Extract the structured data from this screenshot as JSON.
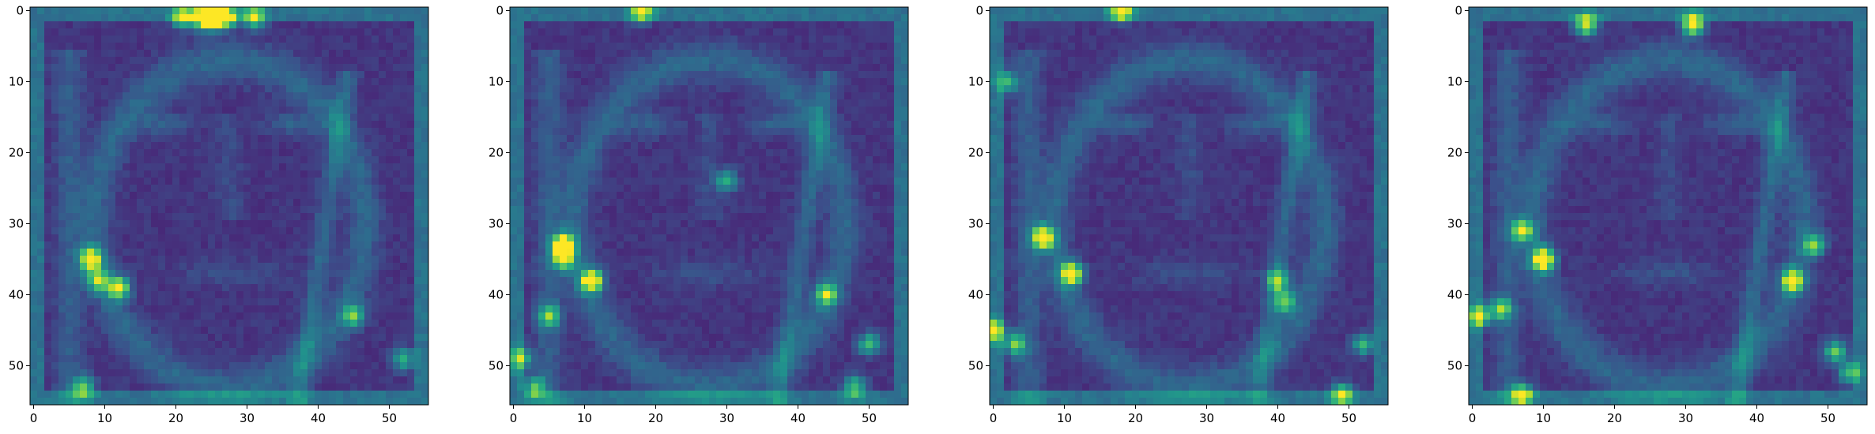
{
  "chart_data": {
    "type": "heatmap",
    "colormap": "viridis",
    "grid": false,
    "panel_count": 4,
    "image_size": [
      56,
      56
    ],
    "xlim": [
      -0.5,
      55.5
    ],
    "ylim": [
      55.5,
      -0.5
    ],
    "x_ticks": [
      0,
      10,
      20,
      30,
      40,
      50
    ],
    "y_ticks": [
      0,
      10,
      20,
      30,
      40,
      50
    ],
    "x_tick_labels": [
      "0",
      "10",
      "20",
      "30",
      "40",
      "50"
    ],
    "y_tick_labels": [
      "0",
      "10",
      "20",
      "30",
      "40",
      "50"
    ],
    "panels": [
      {
        "hotspots": [
          {
            "x": 25,
            "y": 1,
            "v": 1.0
          },
          {
            "x": 24,
            "y": 1,
            "v": 0.9
          },
          {
            "x": 27,
            "y": 1,
            "v": 0.85
          },
          {
            "x": 21,
            "y": 1,
            "v": 0.7
          },
          {
            "x": 31,
            "y": 1,
            "v": 0.65
          },
          {
            "x": 8,
            "y": 35,
            "v": 0.9
          },
          {
            "x": 12,
            "y": 39,
            "v": 0.8
          },
          {
            "x": 9,
            "y": 38,
            "v": 0.6
          },
          {
            "x": 7,
            "y": 53,
            "v": 0.6
          },
          {
            "x": 45,
            "y": 43,
            "v": 0.55
          },
          {
            "x": 52,
            "y": 49,
            "v": 0.5
          }
        ]
      },
      {
        "hotspots": [
          {
            "x": 18,
            "y": 0,
            "v": 0.75
          },
          {
            "x": 7,
            "y": 33,
            "v": 1.0
          },
          {
            "x": 11,
            "y": 38,
            "v": 1.0
          },
          {
            "x": 7,
            "y": 35,
            "v": 0.7
          },
          {
            "x": 5,
            "y": 43,
            "v": 0.6
          },
          {
            "x": 1,
            "y": 49,
            "v": 0.6
          },
          {
            "x": 3,
            "y": 53,
            "v": 0.55
          },
          {
            "x": 44,
            "y": 40,
            "v": 0.65
          },
          {
            "x": 50,
            "y": 47,
            "v": 0.55
          },
          {
            "x": 48,
            "y": 53,
            "v": 0.55
          },
          {
            "x": 30,
            "y": 24,
            "v": 0.45
          }
        ]
      },
      {
        "hotspots": [
          {
            "x": 18,
            "y": 0,
            "v": 0.8
          },
          {
            "x": 7,
            "y": 32,
            "v": 1.0
          },
          {
            "x": 11,
            "y": 37,
            "v": 1.0
          },
          {
            "x": 0,
            "y": 45,
            "v": 0.75
          },
          {
            "x": 3,
            "y": 47,
            "v": 0.6
          },
          {
            "x": 40,
            "y": 38,
            "v": 0.6
          },
          {
            "x": 41,
            "y": 41,
            "v": 0.55
          },
          {
            "x": 52,
            "y": 47,
            "v": 0.5
          },
          {
            "x": 49,
            "y": 54,
            "v": 0.65
          },
          {
            "x": 2,
            "y": 10,
            "v": 0.5
          }
        ]
      },
      {
        "hotspots": [
          {
            "x": 16,
            "y": 2,
            "v": 0.8
          },
          {
            "x": 31,
            "y": 2,
            "v": 0.95
          },
          {
            "x": 10,
            "y": 35,
            "v": 1.0
          },
          {
            "x": 7,
            "y": 31,
            "v": 0.7
          },
          {
            "x": 45,
            "y": 38,
            "v": 0.9
          },
          {
            "x": 48,
            "y": 33,
            "v": 0.6
          },
          {
            "x": 1,
            "y": 43,
            "v": 0.7
          },
          {
            "x": 4,
            "y": 42,
            "v": 0.6
          },
          {
            "x": 7,
            "y": 54,
            "v": 0.75
          },
          {
            "x": 51,
            "y": 48,
            "v": 0.6
          },
          {
            "x": 53,
            "y": 51,
            "v": 0.55
          }
        ]
      }
    ]
  }
}
